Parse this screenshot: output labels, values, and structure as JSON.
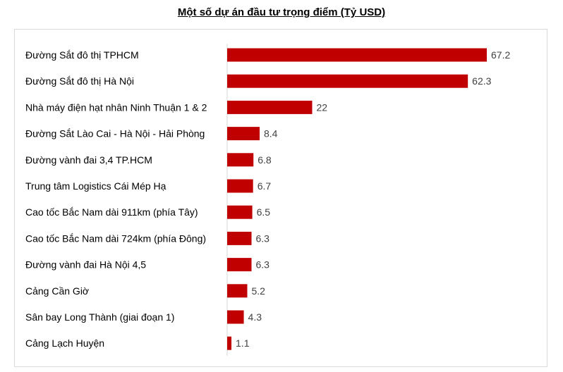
{
  "chart_data": {
    "type": "bar",
    "orientation": "horizontal",
    "title": "Một số dự án đầu tư trọng điểm (Tỷ USD)",
    "xlabel": "",
    "ylabel": "",
    "xlim": [
      0,
      67.2
    ],
    "grid": false,
    "legend": "none",
    "bar_color": "#c00000",
    "categories": [
      "Đường Sắt đô thị TPHCM",
      "Đường Sắt đô thị Hà Nội",
      "Nhà máy điện hạt nhân Ninh Thuận 1 & 2",
      "Đường Sắt Lào Cai - Hà Nội - Hải Phòng",
      "Đường vành đai 3,4 TP.HCM",
      "Trung tâm Logistics Cái Mép Hạ",
      "Cao tốc Bắc Nam dài 911km (phía Tây)",
      "Cao tốc Bắc Nam dài 724km (phía Đông)",
      "Đường vành đai Hà Nội 4,5",
      "Cảng Cần Giờ",
      "Sân bay Long Thành (giai đoạn 1)",
      "Cảng Lạch Huyện"
    ],
    "values": [
      67.2,
      62.3,
      22,
      8.4,
      6.8,
      6.7,
      6.5,
      6.3,
      6.3,
      5.2,
      4.3,
      1.1
    ],
    "value_labels": [
      "67.2",
      "62.3",
      "22",
      "8.4",
      "6.8",
      "6.7",
      "6.5",
      "6.3",
      "6.3",
      "5.2",
      "4.3",
      "1.1"
    ]
  }
}
